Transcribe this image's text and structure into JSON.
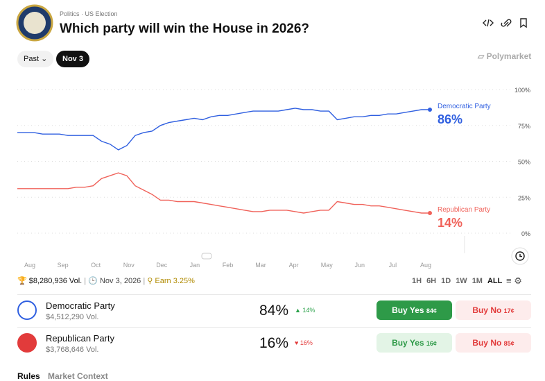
{
  "header": {
    "breadcrumb": [
      "Politics",
      "US Election"
    ],
    "title": "Which party will win the House in 2026?"
  },
  "date_tabs": [
    "Past",
    "Nov 3"
  ],
  "brand": "Polymarket",
  "chart": {
    "type": "line",
    "ylim": [
      0,
      100
    ],
    "yticks": [
      {
        "value": 0,
        "label": "0%"
      },
      {
        "value": 25,
        "label": "25%"
      },
      {
        "value": 50,
        "label": "50%"
      },
      {
        "value": 75,
        "label": "75%"
      },
      {
        "value": 100,
        "label": "100%"
      }
    ],
    "categories": [
      "Aug",
      "Sep",
      "Oct",
      "Nov",
      "Dec",
      "Jan",
      "Feb",
      "Mar",
      "Apr",
      "May",
      "Jun",
      "Jul",
      "Aug"
    ],
    "grid": true,
    "series": [
      {
        "name": "Democratic Party",
        "color": "#2f5fe0",
        "current_label": "86%",
        "values": [
          70,
          70,
          70,
          69,
          69,
          69,
          68,
          68,
          68,
          68,
          64,
          62,
          58,
          61,
          68,
          70,
          71,
          75,
          77,
          78,
          79,
          80,
          79,
          81,
          82,
          82,
          83,
          84,
          85,
          85,
          85,
          85,
          86,
          87,
          86,
          86,
          85,
          85,
          79,
          80,
          81,
          81,
          82,
          82,
          83,
          83,
          84,
          85,
          86,
          86
        ]
      },
      {
        "name": "Republican Party",
        "color": "#f0625a",
        "current_label": "14%",
        "values": [
          31,
          31,
          31,
          31,
          31,
          31,
          31,
          32,
          32,
          33,
          38,
          40,
          42,
          40,
          33,
          30,
          27,
          23,
          23,
          22,
          22,
          22,
          21,
          20,
          19,
          18,
          17,
          16,
          15,
          15,
          16,
          16,
          16,
          15,
          14,
          15,
          16,
          16,
          22,
          21,
          20,
          20,
          19,
          19,
          18,
          17,
          16,
          15,
          14,
          14
        ]
      }
    ]
  },
  "stats": {
    "volume": "$8,280,936 Vol.",
    "date": "Nov 3, 2026",
    "earn": "Earn 3.25%"
  },
  "ranges": [
    "1H",
    "6H",
    "1D",
    "1W",
    "1M",
    "ALL"
  ],
  "outcomes": [
    {
      "name": "Democratic Party",
      "volume": "$4,512,290 Vol.",
      "chance": "84%",
      "change": "14%",
      "buy_yes": "Buy Yes",
      "yes_price": "84¢",
      "buy_no": "Buy No",
      "no_price": "17¢"
    },
    {
      "name": "Republican Party",
      "volume": "$3,768,646 Vol.",
      "chance": "16%",
      "change": "16%",
      "buy_yes": "Buy Yes",
      "yes_price": "16¢",
      "buy_no": "Buy No",
      "no_price": "85¢"
    }
  ],
  "bottom_tabs": [
    "Rules",
    "Market Context"
  ]
}
